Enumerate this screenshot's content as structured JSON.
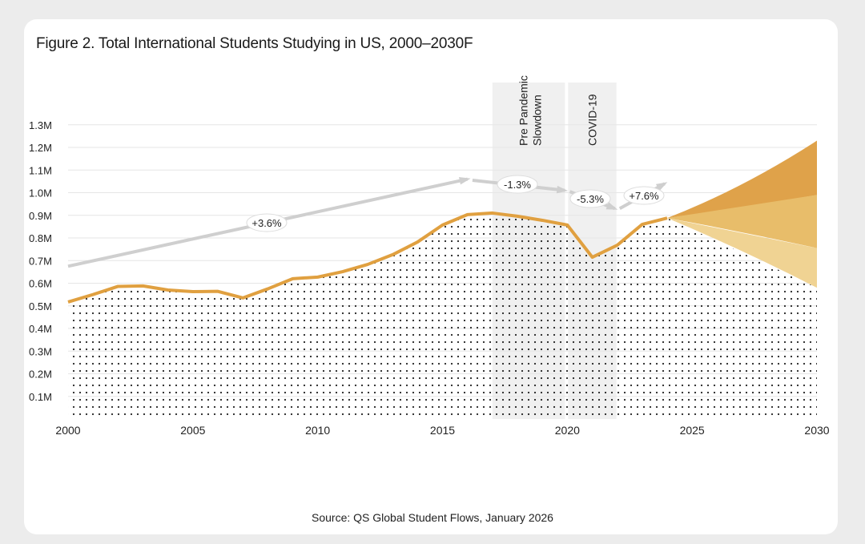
{
  "title": "Figure 2. Total International Students Studying in US, 2000–2030F",
  "source": "Source: QS Global Student Flows, January 2026",
  "colors": {
    "line": "#e0a040",
    "band_high": "#dfa24a",
    "band_mid": "#e8bd6a",
    "band_low": "#f0d393",
    "trend": "#cfcfcf",
    "shade": "#f0f0f0"
  },
  "chart_data": {
    "type": "area",
    "title": "Figure 2. Total International Students Studying in US, 2000–2030F",
    "xlim": [
      2000,
      2030
    ],
    "ylim": [
      0,
      1.3
    ],
    "x_ticks": [
      "2000",
      "2005",
      "2010",
      "2015",
      "2020",
      "2025",
      "2030"
    ],
    "y_ticks": [
      "0.1M",
      "0.2M",
      "0.3M",
      "0.4M",
      "0.5M",
      "0.6M",
      "0.7M",
      "0.8M",
      "0.9M",
      "1.0M",
      "1.1M",
      "1.2M",
      "1.3M"
    ],
    "grid": true,
    "historical": {
      "x": [
        2000,
        2001,
        2002,
        2003,
        2004,
        2005,
        2006,
        2007,
        2008,
        2009,
        2010,
        2011,
        2012,
        2013,
        2014,
        2015,
        2016,
        2017,
        2018,
        2019,
        2020,
        2021,
        2022,
        2023,
        2024
      ],
      "values": [
        0.517,
        0.55,
        0.586,
        0.588,
        0.57,
        0.563,
        0.564,
        0.535,
        0.575,
        0.62,
        0.627,
        0.651,
        0.683,
        0.726,
        0.782,
        0.857,
        0.903,
        0.91,
        0.896,
        0.878,
        0.857,
        0.715,
        0.768,
        0.86,
        0.888
      ]
    },
    "forecast": {
      "x": [
        2024,
        2030
      ],
      "bounds_2030": [
        1.23,
        0.99,
        0.755,
        0.58
      ],
      "start": 0.888
    },
    "periods": [
      {
        "label": "Pre Pandemic Slowdown",
        "from": 2017,
        "to": 2020
      },
      {
        "label": "COVID-19",
        "from": 2020,
        "to": 2022
      }
    ],
    "trends": [
      {
        "label": "+3.6%",
        "from": [
          2000,
          0.675
        ],
        "to": [
          2016,
          1.06
        ]
      },
      {
        "label": "-1.3%",
        "from": [
          2016.2,
          1.055
        ],
        "to": [
          2019.9,
          1.01
        ]
      },
      {
        "label": "-5.3%",
        "from": [
          2020.1,
          1.005
        ],
        "to": [
          2021.9,
          0.93
        ]
      },
      {
        "label": "+7.6%",
        "from": [
          2022.1,
          0.93
        ],
        "to": [
          2023.9,
          1.04
        ]
      }
    ]
  }
}
